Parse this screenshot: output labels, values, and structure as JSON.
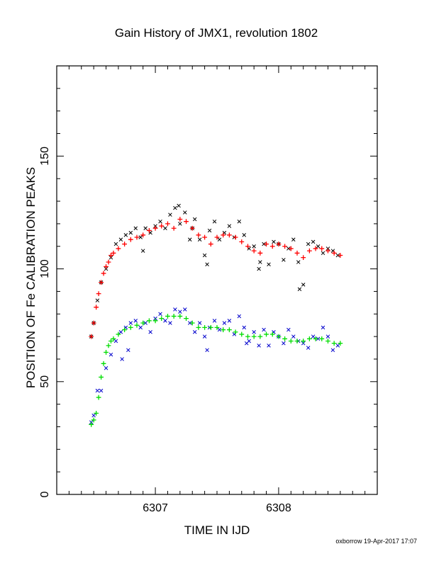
{
  "chart_data": {
    "type": "scatter",
    "title": "Gain History of JMX1, revolution 1802",
    "xlabel": "TIME IN IJD",
    "ylabel": "POSITION OF Fe CALIBRATION PEAKS",
    "xlim": [
      6306.2,
      6308.8
    ],
    "ylim": [
      0,
      190
    ],
    "x_major_ticks": [
      6307,
      6308
    ],
    "x_minor_step": 0.1,
    "y_major_ticks": [
      0,
      50,
      100,
      150
    ],
    "y_minor_step": 10,
    "grid": false,
    "legend": "none",
    "series": [
      {
        "marker": "x",
        "color": "#000000",
        "x": [
          6306.48,
          6306.5,
          6306.53,
          6306.56,
          6306.6,
          6306.64,
          6306.68,
          6306.72,
          6306.76,
          6306.8,
          6306.84,
          6306.88,
          6306.92,
          6306.96,
          6307.0,
          6307.04,
          6307.08,
          6307.12,
          6307.16,
          6307.2,
          6307.24,
          6307.28,
          6307.32,
          6307.36,
          6307.4,
          6307.44,
          6307.48,
          6307.52,
          6307.56,
          6307.6,
          6307.64,
          6307.68,
          6307.72,
          6307.76,
          6307.8,
          6307.84,
          6307.88,
          6307.92,
          6307.96,
          6308.0,
          6308.04,
          6308.08,
          6308.12,
          6308.16,
          6308.2,
          6308.24,
          6308.28,
          6308.32,
          6308.36,
          6308.4,
          6308.44,
          6308.48,
          6307.42,
          6307.85,
          6308.17,
          6307.19,
          6307.3,
          6306.9
        ],
        "y": [
          70,
          76,
          86,
          94,
          100,
          105,
          111,
          113,
          115,
          116,
          118,
          114,
          118,
          116,
          119,
          121,
          118,
          124,
          127,
          120,
          125,
          113,
          122,
          113,
          106,
          117,
          121,
          113,
          116,
          119,
          114,
          121,
          115,
          109,
          110,
          100,
          111,
          102,
          112,
          111,
          104,
          109,
          113,
          103,
          93,
          111,
          112,
          110,
          107,
          109,
          108,
          106,
          102,
          103,
          91,
          128,
          118,
          108
        ]
      },
      {
        "marker": "plus",
        "color": "#ff0000",
        "x": [
          6306.48,
          6306.5,
          6306.52,
          6306.54,
          6306.56,
          6306.58,
          6306.6,
          6306.62,
          6306.64,
          6306.66,
          6306.7,
          6306.75,
          6306.8,
          6306.85,
          6306.9,
          6306.95,
          6307.0,
          6307.05,
          6307.1,
          6307.15,
          6307.2,
          6307.25,
          6307.3,
          6307.35,
          6307.4,
          6307.45,
          6307.5,
          6307.55,
          6307.6,
          6307.65,
          6307.7,
          6307.75,
          6307.8,
          6307.85,
          6307.9,
          6307.95,
          6308.0,
          6308.05,
          6308.1,
          6308.15,
          6308.2,
          6308.25,
          6308.3,
          6308.35,
          6308.4,
          6308.45,
          6308.5
        ],
        "y": [
          70,
          76,
          83,
          89,
          94,
          98,
          101,
          103,
          106,
          107,
          109,
          111,
          113,
          114,
          115,
          117,
          118,
          119,
          120,
          118,
          122,
          121,
          118,
          115,
          114,
          111,
          114,
          115,
          115,
          114,
          112,
          110,
          108,
          107,
          111,
          110,
          111,
          110,
          109,
          107,
          105,
          108,
          109,
          109,
          108,
          107,
          106
        ]
      },
      {
        "marker": "x",
        "color": "#0000cc",
        "x": [
          6306.48,
          6306.5,
          6306.53,
          6306.56,
          6306.6,
          6306.64,
          6306.68,
          6306.72,
          6306.76,
          6306.8,
          6306.84,
          6306.88,
          6306.92,
          6306.96,
          6307.0,
          6307.04,
          6307.08,
          6307.12,
          6307.16,
          6307.2,
          6307.24,
          6307.28,
          6307.32,
          6307.36,
          6307.4,
          6307.44,
          6307.48,
          6307.52,
          6307.56,
          6307.6,
          6307.64,
          6307.68,
          6307.72,
          6307.76,
          6307.8,
          6307.84,
          6307.88,
          6307.92,
          6307.96,
          6308.0,
          6308.04,
          6308.08,
          6308.12,
          6308.16,
          6308.2,
          6308.24,
          6308.28,
          6308.32,
          6308.36,
          6308.4,
          6308.44,
          6308.48,
          6306.73,
          6306.78,
          6307.42,
          6307.74
        ],
        "y": [
          32,
          35,
          46,
          46,
          56,
          62,
          68,
          72,
          74,
          76,
          77,
          74,
          76,
          72,
          78,
          80,
          77,
          76,
          82,
          81,
          82,
          76,
          72,
          76,
          70,
          74,
          77,
          73,
          76,
          77,
          71,
          79,
          74,
          68,
          72,
          66,
          73,
          66,
          72,
          70,
          67,
          73,
          70,
          68,
          67,
          65,
          70,
          69,
          74,
          70,
          64,
          66,
          60,
          64,
          64,
          67
        ]
      },
      {
        "marker": "plus",
        "color": "#00dd00",
        "x": [
          6306.48,
          6306.5,
          6306.52,
          6306.54,
          6306.56,
          6306.58,
          6306.6,
          6306.62,
          6306.64,
          6306.66,
          6306.7,
          6306.75,
          6306.8,
          6306.85,
          6306.9,
          6306.95,
          6307.0,
          6307.05,
          6307.1,
          6307.15,
          6307.2,
          6307.25,
          6307.3,
          6307.35,
          6307.4,
          6307.45,
          6307.5,
          6307.55,
          6307.6,
          6307.65,
          6307.7,
          6307.75,
          6307.8,
          6307.85,
          6307.9,
          6307.95,
          6308.0,
          6308.05,
          6308.1,
          6308.15,
          6308.2,
          6308.25,
          6308.3,
          6308.35,
          6308.4,
          6308.45,
          6308.5
        ],
        "y": [
          31,
          33,
          36,
          43,
          52,
          58,
          63,
          66,
          68,
          69,
          71,
          73,
          74,
          75,
          76,
          77,
          77,
          78,
          79,
          79,
          79,
          78,
          76,
          74,
          74,
          74,
          74,
          73,
          73,
          72,
          71,
          70,
          70,
          70,
          71,
          71,
          70,
          69,
          68,
          68,
          68,
          69,
          69,
          69,
          68,
          67,
          67
        ]
      }
    ]
  },
  "footer": "oxborrow 19-Apr-2017 17:07"
}
